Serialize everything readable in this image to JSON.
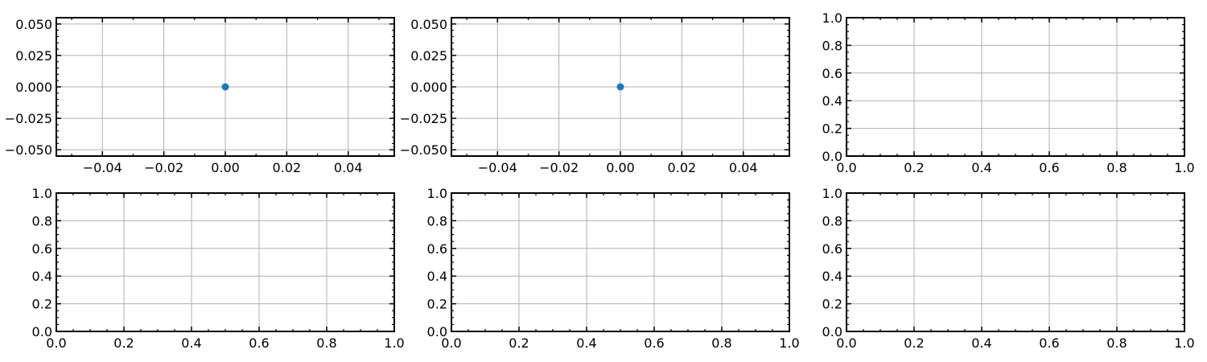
{
  "figure": {
    "background": "#ffffff",
    "grid_color": "#b0b0b0",
    "point_color": "#1f77b4"
  },
  "chart_data": [
    {
      "type": "scatter",
      "grid": true,
      "points": [
        {
          "x": 0.0,
          "y": 0.0
        }
      ],
      "xlim": [
        -0.055,
        0.055
      ],
      "ylim": [
        -0.055,
        0.055
      ],
      "xticks": [
        -0.04,
        -0.02,
        0.0,
        0.02,
        0.04
      ],
      "xtick_labels": [
        "−0.04",
        "−0.02",
        "0.00",
        "0.02",
        "0.04"
      ],
      "yticks": [
        -0.05,
        -0.025,
        0.0,
        0.025,
        0.05
      ],
      "ytick_labels": [
        "−0.050",
        "−0.025",
        "0.000",
        "0.025",
        "0.050"
      ],
      "xminor": 0.01,
      "yminor": 0.005
    },
    {
      "type": "scatter",
      "grid": true,
      "points": [
        {
          "x": 0.0,
          "y": 0.0
        }
      ],
      "xlim": [
        -0.055,
        0.055
      ],
      "ylim": [
        -0.055,
        0.055
      ],
      "xticks": [
        -0.04,
        -0.02,
        0.0,
        0.02,
        0.04
      ],
      "xtick_labels": [
        "−0.04",
        "−0.02",
        "0.00",
        "0.02",
        "0.04"
      ],
      "yticks": [
        -0.05,
        -0.025,
        0.0,
        0.025,
        0.05
      ],
      "ytick_labels": [
        "−0.050",
        "−0.025",
        "0.000",
        "0.025",
        "0.050"
      ],
      "xminor": 0.01,
      "yminor": 0.005
    },
    {
      "type": "scatter",
      "grid": true,
      "points": [],
      "xlim": [
        0,
        1
      ],
      "ylim": [
        0,
        1
      ],
      "xticks": [
        0,
        0.2,
        0.4,
        0.6,
        0.8,
        1.0
      ],
      "xtick_labels": [
        "0.0",
        "0.2",
        "0.4",
        "0.6",
        "0.8",
        "1.0"
      ],
      "yticks": [
        0,
        0.2,
        0.4,
        0.6,
        0.8,
        1.0
      ],
      "ytick_labels": [
        "0.0",
        "0.2",
        "0.4",
        "0.6",
        "0.8",
        "1.0"
      ],
      "xminor": 0.05,
      "yminor": 0.05
    },
    {
      "type": "scatter",
      "grid": true,
      "points": [],
      "xlim": [
        0,
        1
      ],
      "ylim": [
        0,
        1
      ],
      "xticks": [
        0,
        0.2,
        0.4,
        0.6,
        0.8,
        1.0
      ],
      "xtick_labels": [
        "0.0",
        "0.2",
        "0.4",
        "0.6",
        "0.8",
        "1.0"
      ],
      "yticks": [
        0,
        0.2,
        0.4,
        0.6,
        0.8,
        1.0
      ],
      "ytick_labels": [
        "0.0",
        "0.2",
        "0.4",
        "0.6",
        "0.8",
        "1.0"
      ],
      "xminor": 0.05,
      "yminor": 0.05
    },
    {
      "type": "scatter",
      "grid": true,
      "points": [],
      "xlim": [
        0,
        1
      ],
      "ylim": [
        0,
        1
      ],
      "xticks": [
        0,
        0.2,
        0.4,
        0.6,
        0.8,
        1.0
      ],
      "xtick_labels": [
        "0.0",
        "0.2",
        "0.4",
        "0.6",
        "0.8",
        "1.0"
      ],
      "yticks": [
        0,
        0.2,
        0.4,
        0.6,
        0.8,
        1.0
      ],
      "ytick_labels": [
        "0.0",
        "0.2",
        "0.4",
        "0.6",
        "0.8",
        "1.0"
      ],
      "xminor": 0.05,
      "yminor": 0.05
    },
    {
      "type": "scatter",
      "grid": true,
      "points": [],
      "xlim": [
        0,
        1
      ],
      "ylim": [
        0,
        1
      ],
      "xticks": [
        0,
        0.2,
        0.4,
        0.6,
        0.8,
        1.0
      ],
      "xtick_labels": [
        "0.0",
        "0.2",
        "0.4",
        "0.6",
        "0.8",
        "1.0"
      ],
      "yticks": [
        0,
        0.2,
        0.4,
        0.6,
        0.8,
        1.0
      ],
      "ytick_labels": [
        "0.0",
        "0.2",
        "0.4",
        "0.6",
        "0.8",
        "1.0"
      ],
      "xminor": 0.05,
      "yminor": 0.05
    }
  ]
}
